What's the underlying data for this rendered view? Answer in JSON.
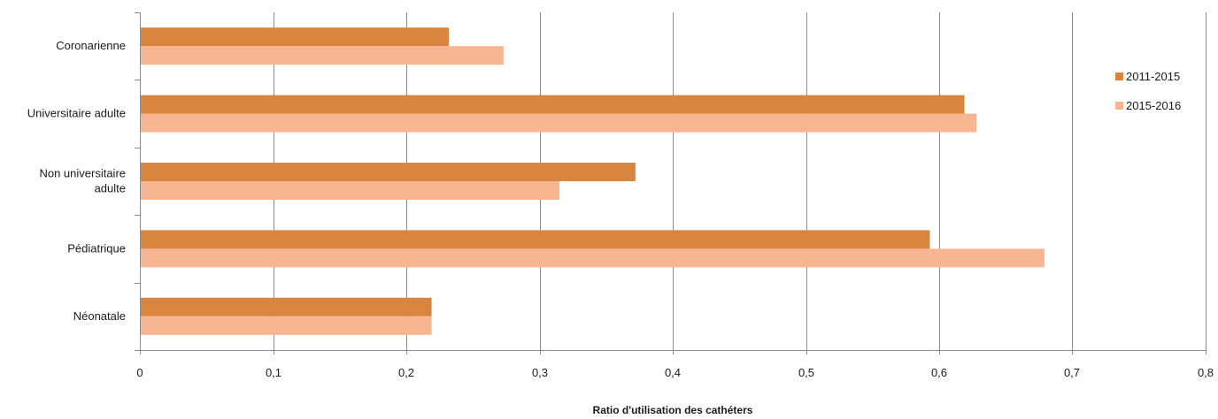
{
  "chart_data": {
    "type": "bar",
    "orientation": "horizontal",
    "title": "",
    "xlabel": "Ratio d'utilisation des cathéters",
    "ylabel": "",
    "xlim": [
      0,
      0.8
    ],
    "x_ticks": [
      0,
      0.1,
      0.2,
      0.3,
      0.4,
      0.5,
      0.6,
      0.7,
      0.8
    ],
    "x_tick_labels": [
      "0",
      "0,1",
      "0,2",
      "0,3",
      "0,4",
      "0,5",
      "0,6",
      "0,7",
      "0,8"
    ],
    "categories": [
      [
        "Coronarienne"
      ],
      [
        "Universitaire adulte"
      ],
      [
        "Non universitaire",
        "adulte"
      ],
      [
        "Pédiatrique"
      ],
      [
        "Néonatale"
      ]
    ],
    "series": [
      {
        "name": "2011-2015",
        "color": "#d9843f",
        "values": [
          0.232,
          0.619,
          0.372,
          0.593,
          0.219
        ]
      },
      {
        "name": "2015-2016",
        "color": "#f8b592",
        "values": [
          0.273,
          0.628,
          0.315,
          0.679,
          0.219
        ]
      }
    ],
    "grid": "vertical",
    "legend_position": "right"
  }
}
